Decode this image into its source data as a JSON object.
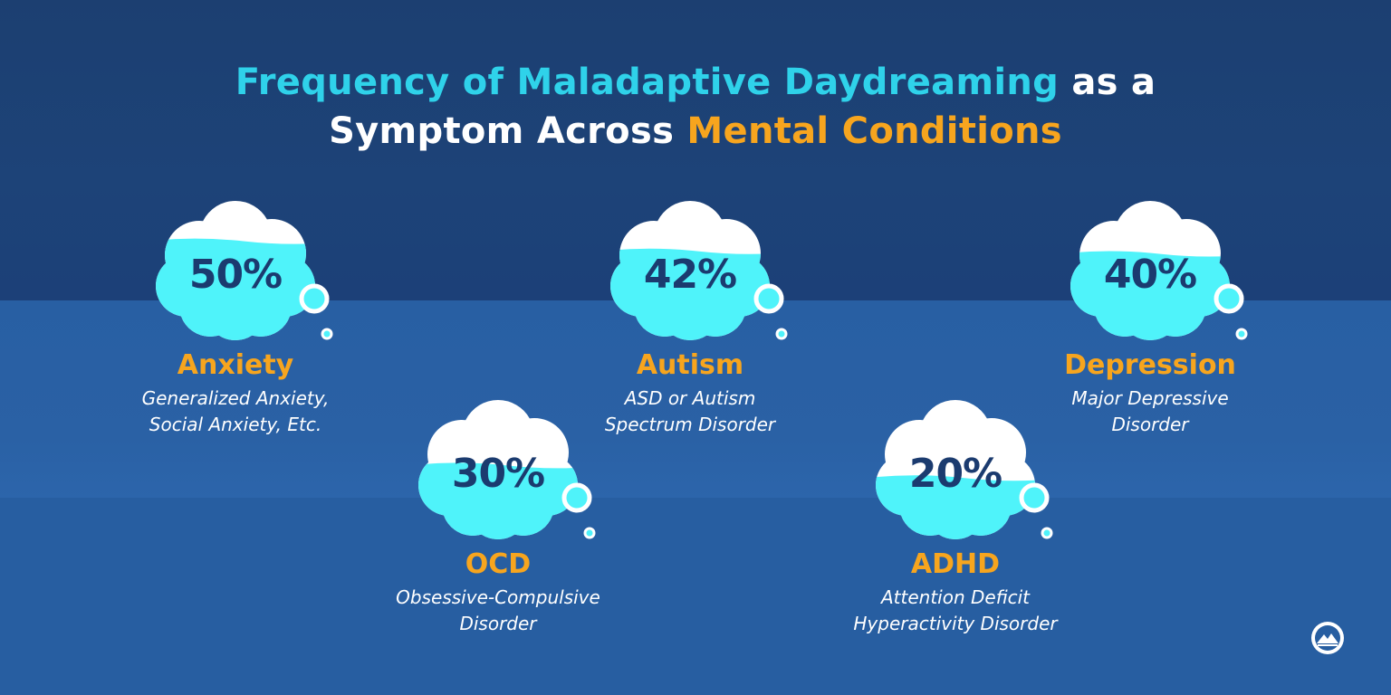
{
  "title": {
    "line1_part1": "Frequency of Maladaptive Daydreaming",
    "line1_part2": " as a",
    "line2_part1": "Symptom Across ",
    "line2_part2": "Mental Conditions"
  },
  "colors": {
    "accent_cyan": "#2fd2ea",
    "accent_orange": "#f7a51e",
    "water": "#4ff3fa",
    "cloud": "#ffffff",
    "navy": "#1b3b6f"
  },
  "conditions": [
    {
      "percent": "50%",
      "fill_level": 0.5,
      "name": "Anxiety",
      "desc1": "Generalized Anxiety,",
      "desc2": "Social Anxiety, Etc."
    },
    {
      "percent": "42%",
      "fill_level": 0.42,
      "name": "Autism",
      "desc1": "ASD or Autism",
      "desc2": "Spectrum Disorder"
    },
    {
      "percent": "40%",
      "fill_level": 0.4,
      "name": "Depression",
      "desc1": "Major Depressive",
      "desc2": "Disorder"
    },
    {
      "percent": "30%",
      "fill_level": 0.3,
      "name": "OCD",
      "desc1": "Obsessive-Compulsive",
      "desc2": "Disorder"
    },
    {
      "percent": "20%",
      "fill_level": 0.2,
      "name": "ADHD",
      "desc1": "Attention Deficit",
      "desc2": "Hyperactivity Disorder"
    }
  ],
  "logo_icon": "mountain-logo-icon"
}
